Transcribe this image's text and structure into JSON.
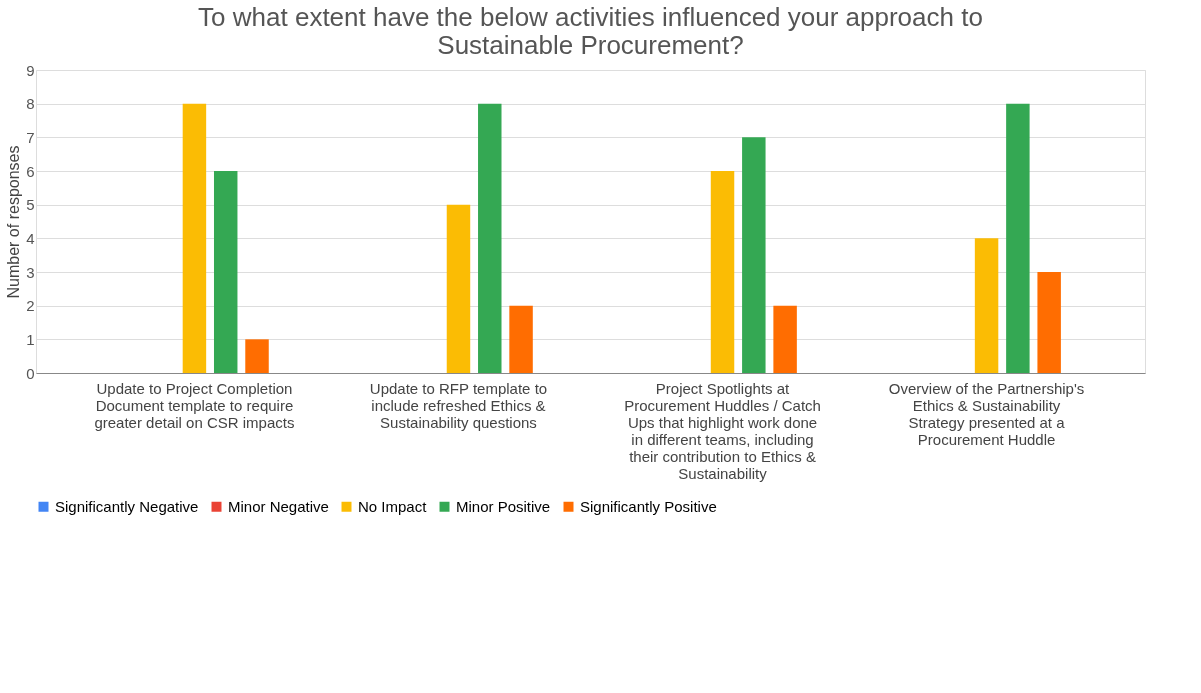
{
  "chart_data": {
    "type": "bar",
    "title": "To what extent have the below activities influenced your approach to Sustainable Procurement?",
    "ylabel": "Number of responses",
    "categories": [
      "Update to Project Completion Document template to require greater detail on CSR impacts",
      "Update to RFP template to include refreshed Ethics & Sustainability questions",
      "Project Spotlights at Procurement Huddles / Catch Ups that highlight work done in different teams, including their contribution to Ethics & Sustainability",
      "Overview of the Partnership's Ethics & Sustainability Strategy presented at a Procurement Huddle"
    ],
    "series": [
      {
        "name": "Significantly Negative",
        "color": "#4285f4",
        "values": [
          0,
          0,
          0,
          0
        ]
      },
      {
        "name": "Minor Negative",
        "color": "#ea4335",
        "values": [
          0,
          0,
          0,
          0
        ]
      },
      {
        "name": "No Impact",
        "color": "#fbbc04",
        "values": [
          8,
          5,
          6,
          4
        ]
      },
      {
        "name": "Minor Positive",
        "color": "#34a853",
        "values": [
          6,
          8,
          7,
          8
        ]
      },
      {
        "name": "Significantly Positive",
        "color": "#ff6d01",
        "values": [
          1,
          2,
          2,
          3
        ]
      }
    ],
    "ylim": [
      0,
      9
    ],
    "yticks": [
      0,
      1,
      2,
      3,
      4,
      5,
      6,
      7,
      8,
      9
    ],
    "grid": "y",
    "legend": "bottom"
  }
}
